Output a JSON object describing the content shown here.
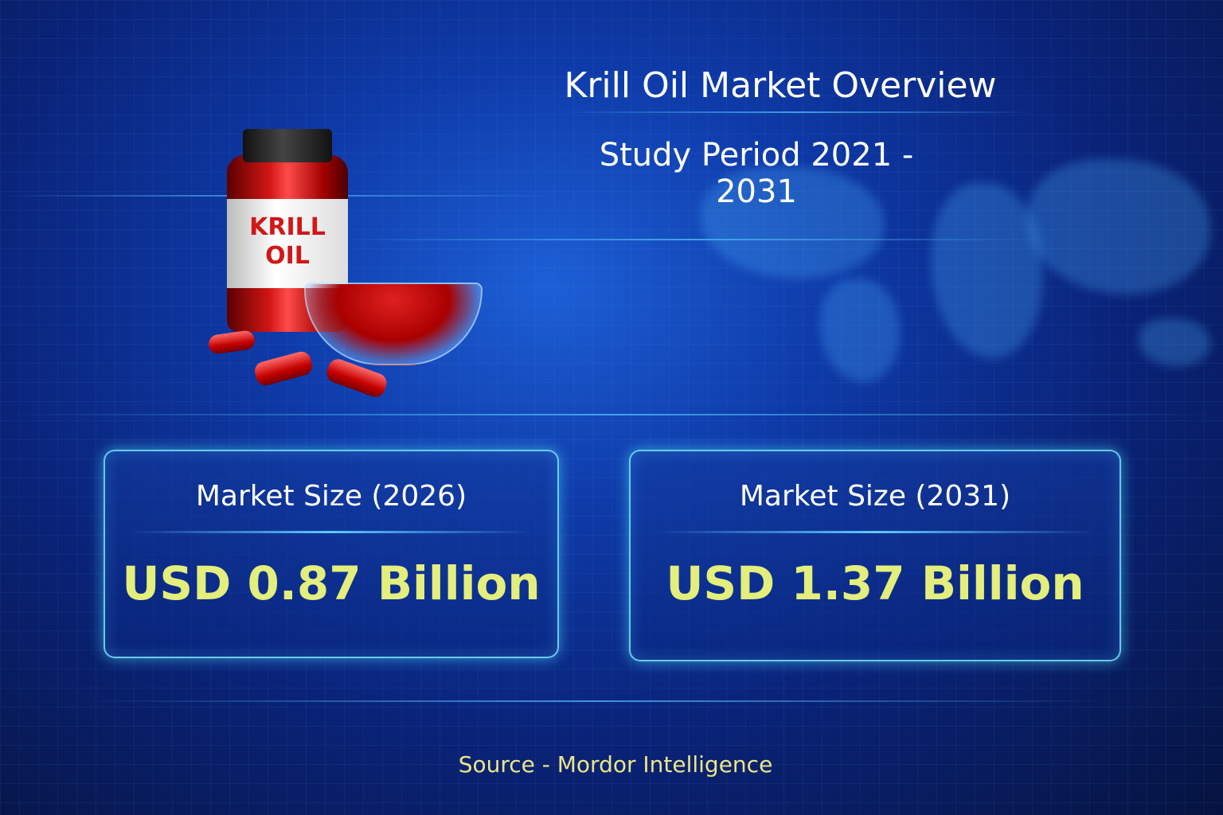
{
  "title": "Krill Oil Market Overview",
  "subtitle": "Study Period 2021 - 2031",
  "product_label": {
    "line1": "KRILL",
    "line2": "OIL"
  },
  "cards": [
    {
      "label": "Market Size (2026)",
      "value": "USD 0.87 Billion"
    },
    {
      "label": "Market Size (2031)",
      "value": "USD 1.37 Billion"
    }
  ],
  "source": "Source  - Mordor Intelligence",
  "colors": {
    "value_text": "#e3ee7c",
    "source_text": "#ebe685",
    "background": "#0a2379",
    "glow": "#56c8ff"
  }
}
